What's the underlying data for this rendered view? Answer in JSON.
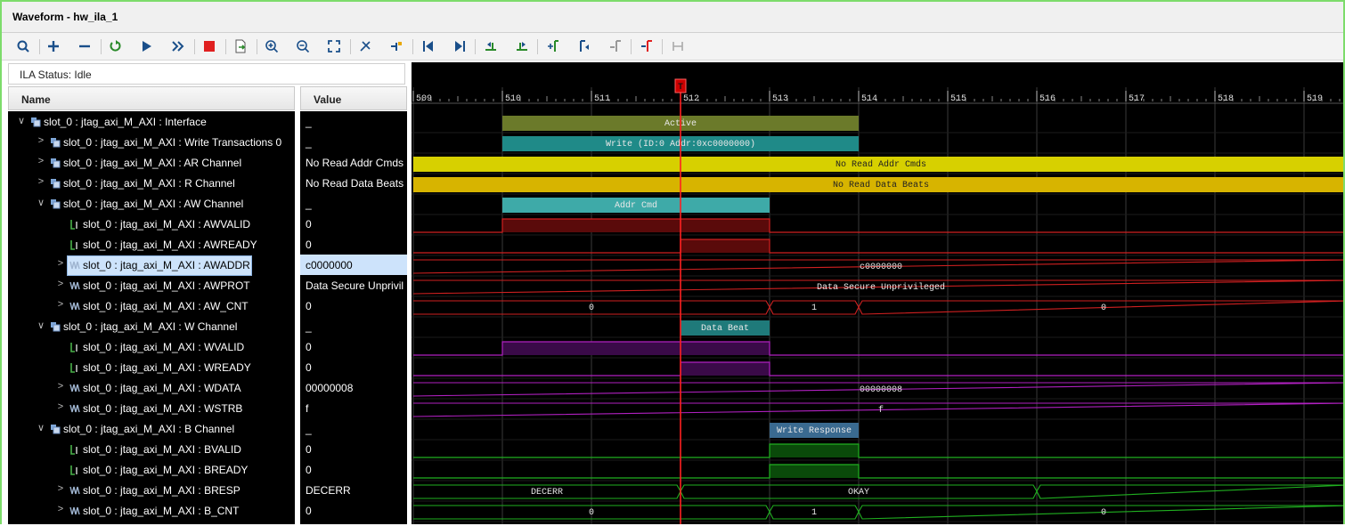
{
  "window": {
    "title": "Waveform - hw_ila_1"
  },
  "toolbar": {
    "buttons": [
      {
        "name": "search-icon"
      },
      {
        "name": "add-icon"
      },
      {
        "name": "remove-icon"
      },
      {
        "name": "run-trigger-immediate-icon"
      },
      {
        "name": "run-trigger-icon"
      },
      {
        "name": "run-fast-forward-icon"
      },
      {
        "name": "stop-icon"
      },
      {
        "name": "export-icon"
      },
      {
        "name": "zoom-in-icon"
      },
      {
        "name": "zoom-out-icon"
      },
      {
        "name": "zoom-fit-icon"
      },
      {
        "name": "cursor-icon"
      },
      {
        "name": "marker-icon"
      },
      {
        "name": "go-to-start-icon"
      },
      {
        "name": "go-to-end-icon"
      },
      {
        "name": "prev-transition-icon"
      },
      {
        "name": "next-transition-icon"
      },
      {
        "name": "add-marker-icon"
      },
      {
        "name": "prev-marker-icon"
      },
      {
        "name": "next-marker-icon"
      },
      {
        "name": "swap-cursors-icon"
      },
      {
        "name": "snap-icon"
      }
    ]
  },
  "status": {
    "text": "ILA Status: Idle"
  },
  "columns": {
    "name": "Name",
    "value": "Value"
  },
  "signals": [
    {
      "label": "slot_0 : jtag_axi_M_AXI : Interface",
      "value": "_",
      "indent": 0,
      "expander": "∨",
      "icon": "interface-icon"
    },
    {
      "label": "slot_0 : jtag_axi_M_AXI : Write Transactions 0",
      "value": "_",
      "indent": 1,
      "expander": ">",
      "icon": "interface-icon"
    },
    {
      "label": "slot_0 : jtag_axi_M_AXI : AR Channel",
      "value": "No Read Addr Cmds",
      "indent": 1,
      "expander": ">",
      "icon": "interface-icon"
    },
    {
      "label": "slot_0 : jtag_axi_M_AXI : R Channel",
      "value": "No Read Data Beats",
      "indent": 1,
      "expander": ">",
      "icon": "interface-icon"
    },
    {
      "label": "slot_0 : jtag_axi_M_AXI : AW Channel",
      "value": "_",
      "indent": 1,
      "expander": "∨",
      "icon": "interface-icon"
    },
    {
      "label": "slot_0 : jtag_axi_M_AXI : AWVALID",
      "value": "0",
      "indent": 2,
      "expander": "",
      "icon": "bit-icon"
    },
    {
      "label": "slot_0 : jtag_axi_M_AXI : AWREADY",
      "value": "0",
      "indent": 2,
      "expander": "",
      "icon": "bit-icon"
    },
    {
      "label": "slot_0 : jtag_axi_M_AXI : AWADDR",
      "value": "c0000000",
      "indent": 2,
      "expander": ">",
      "icon": "bus-icon",
      "selected": true
    },
    {
      "label": "slot_0 : jtag_axi_M_AXI : AWPROT",
      "value": "Data Secure Unprivil",
      "indent": 2,
      "expander": ">",
      "icon": "bus-icon"
    },
    {
      "label": "slot_0 : jtag_axi_M_AXI : AW_CNT",
      "value": "0",
      "indent": 2,
      "expander": ">",
      "icon": "bus-icon"
    },
    {
      "label": "slot_0 : jtag_axi_M_AXI : W Channel",
      "value": "_",
      "indent": 1,
      "expander": "∨",
      "icon": "interface-icon"
    },
    {
      "label": "slot_0 : jtag_axi_M_AXI : WVALID",
      "value": "0",
      "indent": 2,
      "expander": "",
      "icon": "bit-icon"
    },
    {
      "label": "slot_0 : jtag_axi_M_AXI : WREADY",
      "value": "0",
      "indent": 2,
      "expander": "",
      "icon": "bit-icon"
    },
    {
      "label": "slot_0 : jtag_axi_M_AXI : WDATA",
      "value": "00000008",
      "indent": 2,
      "expander": ">",
      "icon": "bus-icon"
    },
    {
      "label": "slot_0 : jtag_axi_M_AXI : WSTRB",
      "value": "f",
      "indent": 2,
      "expander": ">",
      "icon": "bus-icon"
    },
    {
      "label": "slot_0 : jtag_axi_M_AXI : B Channel",
      "value": "_",
      "indent": 1,
      "expander": "∨",
      "icon": "interface-icon"
    },
    {
      "label": "slot_0 : jtag_axi_M_AXI : BVALID",
      "value": "0",
      "indent": 2,
      "expander": "",
      "icon": "bit-icon"
    },
    {
      "label": "slot_0 : jtag_axi_M_AXI : BREADY",
      "value": "0",
      "indent": 2,
      "expander": "",
      "icon": "bit-icon"
    },
    {
      "label": "slot_0 : jtag_axi_M_AXI : BRESP",
      "value": "DECERR",
      "indent": 2,
      "expander": ">",
      "icon": "bus-icon"
    },
    {
      "label": "slot_0 : jtag_axi_M_AXI : B_CNT",
      "value": "0",
      "indent": 2,
      "expander": ">",
      "icon": "bus-icon"
    }
  ],
  "waveform": {
    "time_start": 509,
    "time_end": 519.5,
    "ruler_ticks": [
      "509",
      "510",
      "511",
      "512",
      "513",
      "514",
      "515",
      "516",
      "517",
      "518",
      "519"
    ],
    "trigger_label": "T",
    "trigger_time": 512,
    "colors": {
      "cursor": "#ff2020",
      "grid": "#3a3a3a",
      "ruler_text": "#e0e0e0"
    },
    "rows": [
      {
        "kind": "label",
        "segments": [
          {
            "t0": 510,
            "t1": 514,
            "text": "Active",
            "fill": "#6b7a2a"
          }
        ]
      },
      {
        "kind": "label",
        "segments": [
          {
            "t0": 510,
            "t1": 514,
            "text": "Write (ID:0 Addr:0xc0000000)",
            "fill": "#1f8a88"
          }
        ]
      },
      {
        "kind": "fill",
        "segments": [
          {
            "t0": 509,
            "t1": 519.5,
            "text": "No Read Addr Cmds",
            "fill": "#d7d000"
          }
        ]
      },
      {
        "kind": "fill",
        "segments": [
          {
            "t0": 509,
            "t1": 519.5,
            "text": "No Read Data Beats",
            "fill": "#d7b400"
          }
        ]
      },
      {
        "kind": "label",
        "segments": [
          {
            "t0": 510,
            "t1": 513,
            "text": "Addr Cmd",
            "fill": "#3eaaa8"
          }
        ]
      },
      {
        "kind": "bit",
        "color": "#d02020",
        "high": [
          [
            510,
            513
          ]
        ],
        "fill": "#5a0a0a"
      },
      {
        "kind": "bit",
        "color": "#d02020",
        "high": [
          [
            512,
            513
          ]
        ],
        "fill": "#5a0a0a"
      },
      {
        "kind": "bus",
        "color": "#d02020",
        "values": [
          {
            "t0": 509,
            "t1": 519.5,
            "text": "c0000000"
          }
        ]
      },
      {
        "kind": "bus",
        "color": "#d02020",
        "values": [
          {
            "t0": 509,
            "t1": 519.5,
            "text": "Data Secure Unprivileged"
          }
        ]
      },
      {
        "kind": "bus",
        "color": "#d02020",
        "values": [
          {
            "t0": 509,
            "t1": 513,
            "text": "0"
          },
          {
            "t0": 513,
            "t1": 514,
            "text": "1"
          },
          {
            "t0": 514,
            "t1": 519.5,
            "text": "0"
          }
        ]
      },
      {
        "kind": "label",
        "segments": [
          {
            "t0": 512,
            "t1": 513,
            "text": "Data Beat",
            "fill": "#1f7a7a"
          }
        ]
      },
      {
        "kind": "bit",
        "color": "#b020c0",
        "high": [
          [
            510,
            513
          ]
        ],
        "fill": "#3a0a48"
      },
      {
        "kind": "bit",
        "color": "#b020c0",
        "high": [
          [
            512,
            513
          ]
        ],
        "fill": "#3a0a48"
      },
      {
        "kind": "bus",
        "color": "#b020c0",
        "values": [
          {
            "t0": 509,
            "t1": 519.5,
            "text": "00000008"
          }
        ]
      },
      {
        "kind": "bus",
        "color": "#b020c0",
        "values": [
          {
            "t0": 509,
            "t1": 519.5,
            "text": "f"
          }
        ]
      },
      {
        "kind": "label",
        "segments": [
          {
            "t0": 513,
            "t1": 514,
            "text": "Write Response",
            "fill": "#3a6a90"
          }
        ]
      },
      {
        "kind": "bit",
        "color": "#20b020",
        "high": [
          [
            513,
            514
          ]
        ],
        "fill": "#0a4a0a"
      },
      {
        "kind": "bit",
        "color": "#20b020",
        "high": [
          [
            513,
            514
          ]
        ],
        "fill": "#0a4a0a"
      },
      {
        "kind": "bus",
        "color": "#20b020",
        "values": [
          {
            "t0": 509,
            "t1": 512,
            "text": "DECERR"
          },
          {
            "t0": 512,
            "t1": 516,
            "text": "OKAY"
          },
          {
            "t0": 516,
            "t1": 519.5,
            "text": ""
          }
        ]
      },
      {
        "kind": "bus",
        "color": "#20b020",
        "values": [
          {
            "t0": 509,
            "t1": 513,
            "text": "0"
          },
          {
            "t0": 513,
            "t1": 514,
            "text": "1"
          },
          {
            "t0": 514,
            "t1": 519.5,
            "text": "0"
          }
        ]
      }
    ]
  }
}
